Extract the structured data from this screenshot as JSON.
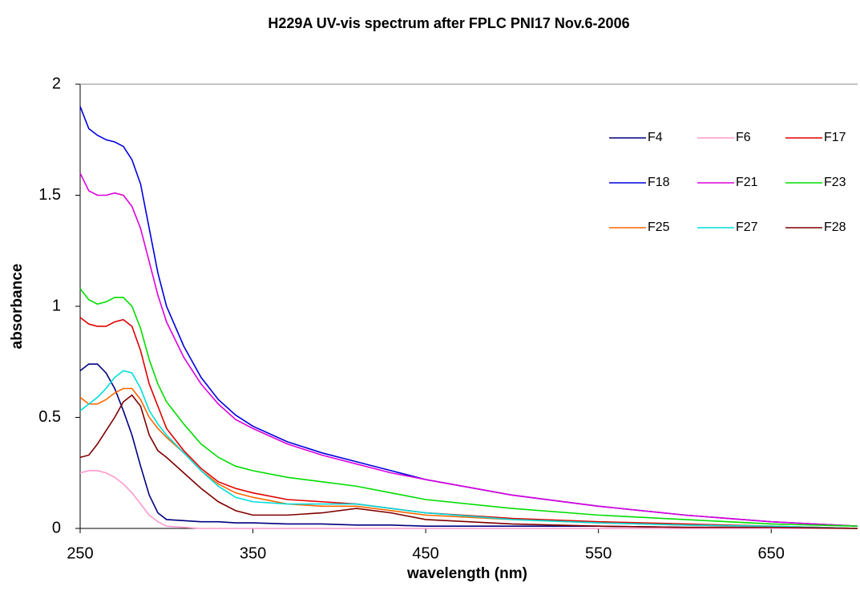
{
  "chart_data": {
    "type": "line",
    "title": "H229A UV-vis spectrum after FPLC PNI17 Nov.6-2006",
    "x_label": "wavelength (nm)",
    "y_label": "absorbance",
    "x": [
      250,
      255,
      260,
      265,
      270,
      275,
      280,
      285,
      290,
      295,
      300,
      310,
      320,
      330,
      340,
      350,
      370,
      390,
      410,
      430,
      450,
      500,
      550,
      600,
      650,
      700
    ],
    "xlim": [
      250,
      700
    ],
    "xticks": [
      250,
      350,
      450,
      550,
      650
    ],
    "ylim": [
      0,
      2
    ],
    "yticks": [
      0,
      0.5,
      1,
      1.5,
      2
    ],
    "series": [
      {
        "name": "F4",
        "color": "#000080",
        "values": [
          0.71,
          0.74,
          0.74,
          0.7,
          0.63,
          0.53,
          0.42,
          0.28,
          0.15,
          0.07,
          0.04,
          0.035,
          0.03,
          0.03,
          0.025,
          0.025,
          0.02,
          0.02,
          0.015,
          0.015,
          0.01,
          0.01,
          0.01,
          0.005,
          0.005,
          0
        ]
      },
      {
        "name": "F6",
        "color": "#ff99cc",
        "values": [
          0.25,
          0.26,
          0.26,
          0.25,
          0.23,
          0.2,
          0.16,
          0.11,
          0.06,
          0.03,
          0.01,
          0.005,
          0,
          0,
          0,
          0,
          0,
          0,
          0,
          0,
          0,
          0,
          0,
          0,
          0,
          0
        ]
      },
      {
        "name": "F17",
        "color": "#e00000",
        "values": [
          0.95,
          0.92,
          0.91,
          0.91,
          0.93,
          0.94,
          0.91,
          0.8,
          0.65,
          0.55,
          0.45,
          0.35,
          0.27,
          0.21,
          0.18,
          0.16,
          0.13,
          0.12,
          0.11,
          0.09,
          0.07,
          0.045,
          0.03,
          0.02,
          0.01,
          0
        ]
      },
      {
        "name": "F18",
        "color": "#0000dd",
        "values": [
          1.9,
          1.8,
          1.77,
          1.75,
          1.74,
          1.72,
          1.66,
          1.55,
          1.35,
          1.15,
          1.0,
          0.82,
          0.68,
          0.58,
          0.51,
          0.46,
          0.39,
          0.34,
          0.3,
          0.26,
          0.22,
          0.15,
          0.1,
          0.06,
          0.03,
          0.01
        ]
      },
      {
        "name": "F21",
        "color": "#dd00dd",
        "values": [
          1.6,
          1.52,
          1.5,
          1.5,
          1.51,
          1.5,
          1.45,
          1.35,
          1.2,
          1.05,
          0.93,
          0.77,
          0.65,
          0.56,
          0.49,
          0.45,
          0.38,
          0.33,
          0.29,
          0.25,
          0.22,
          0.15,
          0.1,
          0.06,
          0.03,
          0.01
        ]
      },
      {
        "name": "F23",
        "color": "#00dd00",
        "values": [
          1.08,
          1.03,
          1.01,
          1.02,
          1.04,
          1.04,
          1.0,
          0.9,
          0.76,
          0.65,
          0.57,
          0.47,
          0.38,
          0.32,
          0.28,
          0.26,
          0.23,
          0.21,
          0.19,
          0.16,
          0.13,
          0.09,
          0.06,
          0.04,
          0.02,
          0.01
        ]
      },
      {
        "name": "F25",
        "color": "#ff6600",
        "values": [
          0.59,
          0.56,
          0.56,
          0.58,
          0.61,
          0.63,
          0.63,
          0.58,
          0.5,
          0.45,
          0.41,
          0.34,
          0.26,
          0.2,
          0.16,
          0.14,
          0.11,
          0.1,
          0.1,
          0.08,
          0.06,
          0.04,
          0.025,
          0.015,
          0.01,
          0
        ]
      },
      {
        "name": "F27",
        "color": "#00dddd",
        "values": [
          0.53,
          0.56,
          0.59,
          0.63,
          0.68,
          0.71,
          0.7,
          0.63,
          0.53,
          0.47,
          0.42,
          0.34,
          0.26,
          0.19,
          0.14,
          0.12,
          0.11,
          0.11,
          0.11,
          0.09,
          0.07,
          0.04,
          0.025,
          0.015,
          0.01,
          0
        ]
      },
      {
        "name": "F28",
        "color": "#800000",
        "values": [
          0.32,
          0.33,
          0.38,
          0.44,
          0.5,
          0.57,
          0.6,
          0.55,
          0.42,
          0.35,
          0.32,
          0.25,
          0.18,
          0.12,
          0.08,
          0.06,
          0.06,
          0.07,
          0.09,
          0.07,
          0.04,
          0.02,
          0.01,
          0.005,
          0.005,
          0
        ]
      }
    ]
  }
}
